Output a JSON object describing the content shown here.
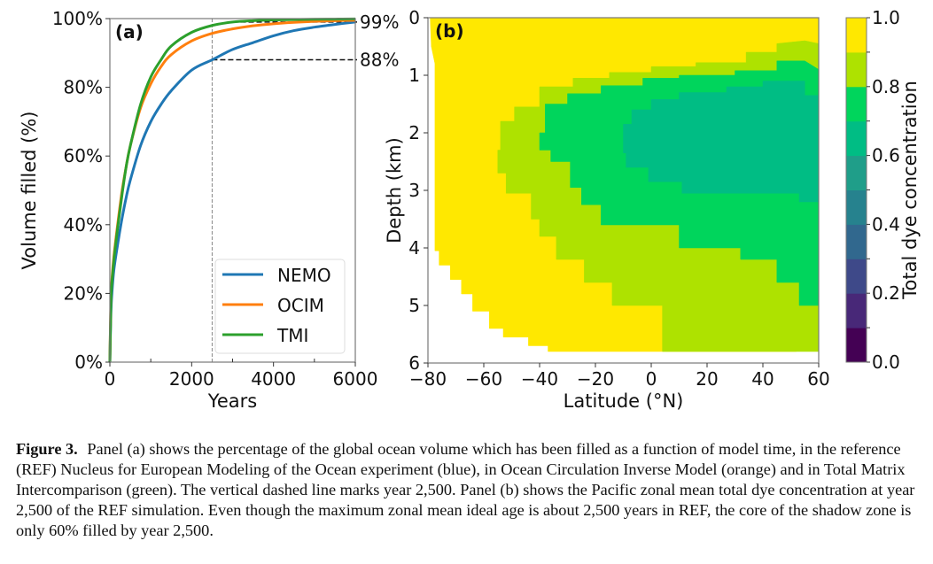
{
  "caption": {
    "figure_label": "Figure 3.",
    "text": "Panel (a) shows the percentage of the global ocean volume which has been filled as a function of model time, in the reference (REF) Nucleus for European Modeling of the Ocean experiment (blue), in Ocean Circulation Inverse Model (orange) and in Total Matrix Intercomparison (green). The vertical dashed line marks year 2,500. Panel (b) shows the Pacific zonal mean total dye concentration at year 2,500 of the REF simulation. Even though the maximum zonal mean ideal age is about 2,500 years in REF, the core of the shadow zone is only 60% filled by year 2,500."
  },
  "chart_data": [
    {
      "type": "line",
      "panel_tag": "(a)",
      "title": "",
      "xlabel": "Years",
      "ylabel": "Volume filled (%)",
      "xlim": [
        0,
        6000
      ],
      "ylim": [
        0,
        100
      ],
      "xticks": [
        0,
        2000,
        4000,
        6000
      ],
      "xtick_labels": [
        "0",
        "2000",
        "4000",
        "6000"
      ],
      "xminor_ticks": [
        1000,
        3000,
        5000
      ],
      "yticks": [
        0,
        20,
        40,
        60,
        80,
        100
      ],
      "ytick_labels": [
        "0%",
        "20%",
        "40%",
        "60%",
        "80%",
        "100%"
      ],
      "grid": false,
      "legend_position": "lower-right",
      "x": [
        0,
        25,
        50,
        100,
        200,
        300,
        400,
        500,
        750,
        1000,
        1250,
        1500,
        2000,
        2500,
        3000,
        3500,
        4000,
        4500,
        5000,
        5500,
        6000
      ],
      "series": [
        {
          "name": "NEMO",
          "color": "#1f77b4",
          "values": [
            0,
            14,
            20,
            27,
            35,
            42,
            48,
            53,
            63,
            70,
            75,
            79,
            85,
            88,
            91,
            93,
            95,
            96.5,
            97.5,
            98.3,
            99
          ]
        },
        {
          "name": "OCIM",
          "color": "#ff7f0e",
          "values": [
            0,
            18,
            24,
            31,
            41,
            50,
            57,
            63,
            74,
            81,
            86,
            89.5,
            93.5,
            95.7,
            97,
            97.9,
            98.5,
            98.9,
            99.2,
            99.4,
            99.5
          ]
        },
        {
          "name": "TMI",
          "color": "#2ca02c",
          "values": [
            0,
            17,
            23,
            30,
            40,
            49,
            57,
            63,
            75,
            83,
            88,
            92,
            96,
            98,
            99,
            99.4,
            99.6,
            99.7,
            99.8,
            99.85,
            99.9
          ]
        }
      ],
      "annotations": [
        {
          "type": "vline",
          "x": 2500,
          "style": "dashed-gray"
        },
        {
          "type": "hline",
          "y": 88,
          "x_from": 2500,
          "x_to": 6000,
          "style": "dashed-black",
          "label": "88%"
        },
        {
          "type": "hline",
          "y": 99,
          "x_from": 3000,
          "x_to": 6000,
          "style": "dashed-black",
          "label": "99%"
        }
      ]
    },
    {
      "type": "heatmap",
      "panel_tag": "(b)",
      "title": "",
      "xlabel": "Latitude (°N)",
      "ylabel": "Depth (km)",
      "xlim": [
        -80,
        60
      ],
      "ylim": [
        6,
        0
      ],
      "xticks": [
        -80,
        -60,
        -40,
        -20,
        0,
        20,
        40,
        60
      ],
      "xtick_labels": [
        "−80",
        "−60",
        "−40",
        "−20",
        "0",
        "20",
        "40",
        "60"
      ],
      "yticks": [
        0,
        1,
        2,
        3,
        4,
        5,
        6
      ],
      "ytick_labels": [
        "0",
        "1",
        "2",
        "3",
        "4",
        "5",
        "6"
      ],
      "colorbar": {
        "label": "Total dye concentration",
        "range": [
          0,
          1
        ],
        "levels": [
          0.0,
          0.1,
          0.2,
          0.3,
          0.4,
          0.5,
          0.6,
          0.7,
          0.8,
          0.9,
          1.0
        ],
        "colors": [
          "#440154",
          "#482878",
          "#3e4989",
          "#31688e",
          "#26828e",
          "#1f9e89",
          "#00bd84",
          "#00d55c",
          "#aee200",
          "#ffe800"
        ],
        "tick_values": [
          0.0,
          0.2,
          0.4,
          0.6,
          0.8,
          1.0
        ],
        "tick_labels": [
          "0.0",
          "0.2",
          "0.4",
          "0.6",
          "0.8",
          "1.0"
        ]
      },
      "bands": [
        {
          "level": "0.9-1.0",
          "color": "#ffe800",
          "polygon": [
            [
              -79.2,
              0
            ],
            [
              60,
              0
            ],
            [
              60,
              5.7
            ],
            [
              52,
              5.7
            ],
            [
              52,
              5.8
            ],
            [
              -37,
              5.8
            ],
            [
              -37,
              5.7
            ],
            [
              -44,
              5.7
            ],
            [
              -44,
              5.55
            ],
            [
              -53,
              5.55
            ],
            [
              -53,
              5.4
            ],
            [
              -58,
              5.4
            ],
            [
              -58,
              5.1
            ],
            [
              -64,
              5.1
            ],
            [
              -64,
              4.8
            ],
            [
              -68,
              4.8
            ],
            [
              -68,
              4.55
            ],
            [
              -72,
              4.55
            ],
            [
              -72,
              4.3
            ],
            [
              -76,
              4.3
            ],
            [
              -76,
              4.05
            ],
            [
              -77.5,
              4.05
            ],
            [
              -77.5,
              0.8
            ],
            [
              -78.8,
              0.5
            ]
          ]
        },
        {
          "level": "0.8-0.9",
          "color": "#aee200",
          "polygon": [
            [
              60,
              0.45
            ],
            [
              60,
              5.8
            ],
            [
              4,
              5.8
            ],
            [
              4,
              5.5
            ],
            [
              4,
              5.0
            ],
            [
              -14,
              5.0
            ],
            [
              -14,
              4.6
            ],
            [
              -24,
              4.6
            ],
            [
              -24,
              4.2
            ],
            [
              -34,
              4.2
            ],
            [
              -34,
              3.8
            ],
            [
              -40,
              3.8
            ],
            [
              -40,
              3.5
            ],
            [
              -43,
              3.5
            ],
            [
              -43,
              3.05
            ],
            [
              -52,
              3.05
            ],
            [
              -52,
              2.7
            ],
            [
              -55,
              2.7
            ],
            [
              -55,
              2.3
            ],
            [
              -54,
              2.3
            ],
            [
              -54,
              1.8
            ],
            [
              -49,
              1.8
            ],
            [
              -49,
              1.55
            ],
            [
              -40,
              1.55
            ],
            [
              -40,
              1.2
            ],
            [
              -28,
              1.2
            ],
            [
              -28,
              1.05
            ],
            [
              -15,
              1.05
            ],
            [
              -15,
              0.95
            ],
            [
              0,
              0.95
            ],
            [
              0,
              0.85
            ],
            [
              16,
              0.85
            ],
            [
              16,
              0.78
            ],
            [
              34,
              0.78
            ],
            [
              34,
              0.6
            ],
            [
              45,
              0.6
            ],
            [
              45,
              0.45
            ],
            [
              55,
              0.4
            ]
          ]
        },
        {
          "level": "0.7-0.8",
          "color": "#00d55c",
          "polygon": [
            [
              60,
              0.9
            ],
            [
              60,
              5.0
            ],
            [
              53,
              5.0
            ],
            [
              53,
              4.6
            ],
            [
              45,
              4.6
            ],
            [
              45,
              4.2
            ],
            [
              32,
              4.2
            ],
            [
              32,
              4.0
            ],
            [
              10,
              4.0
            ],
            [
              10,
              3.6
            ],
            [
              -18,
              3.6
            ],
            [
              -18,
              3.25
            ],
            [
              -25,
              3.25
            ],
            [
              -25,
              2.95
            ],
            [
              -29,
              2.95
            ],
            [
              -29,
              2.5
            ],
            [
              -36,
              2.5
            ],
            [
              -36,
              2.3
            ],
            [
              -40,
              2.3
            ],
            [
              -40,
              2.0
            ],
            [
              -38,
              2.0
            ],
            [
              -38,
              1.5
            ],
            [
              -30,
              1.5
            ],
            [
              -30,
              1.32
            ],
            [
              -18,
              1.32
            ],
            [
              -18,
              1.18
            ],
            [
              -3,
              1.18
            ],
            [
              -3,
              1.05
            ],
            [
              10,
              1.05
            ],
            [
              10,
              1.0
            ],
            [
              30,
              1.0
            ],
            [
              30,
              0.92
            ],
            [
              45,
              0.92
            ],
            [
              45,
              0.75
            ],
            [
              55,
              0.75
            ]
          ]
        },
        {
          "level": "0.6-0.7",
          "color": "#00bd84",
          "polygon": [
            [
              60,
              1.35
            ],
            [
              60,
              3.2
            ],
            [
              53,
              3.2
            ],
            [
              53,
              3.05
            ],
            [
              11,
              3.05
            ],
            [
              11,
              2.85
            ],
            [
              -1,
              2.85
            ],
            [
              -1,
              2.6
            ],
            [
              -9,
              2.6
            ],
            [
              -9,
              2.35
            ],
            [
              -10,
              2.35
            ],
            [
              -10,
              1.85
            ],
            [
              -7,
              1.85
            ],
            [
              -7,
              1.6
            ],
            [
              0,
              1.6
            ],
            [
              0,
              1.42
            ],
            [
              10,
              1.42
            ],
            [
              10,
              1.3
            ],
            [
              27,
              1.3
            ],
            [
              27,
              1.2
            ],
            [
              40,
              1.2
            ],
            [
              40,
              1.1
            ],
            [
              55,
              1.1
            ],
            [
              55,
              1.35
            ]
          ]
        }
      ]
    }
  ]
}
